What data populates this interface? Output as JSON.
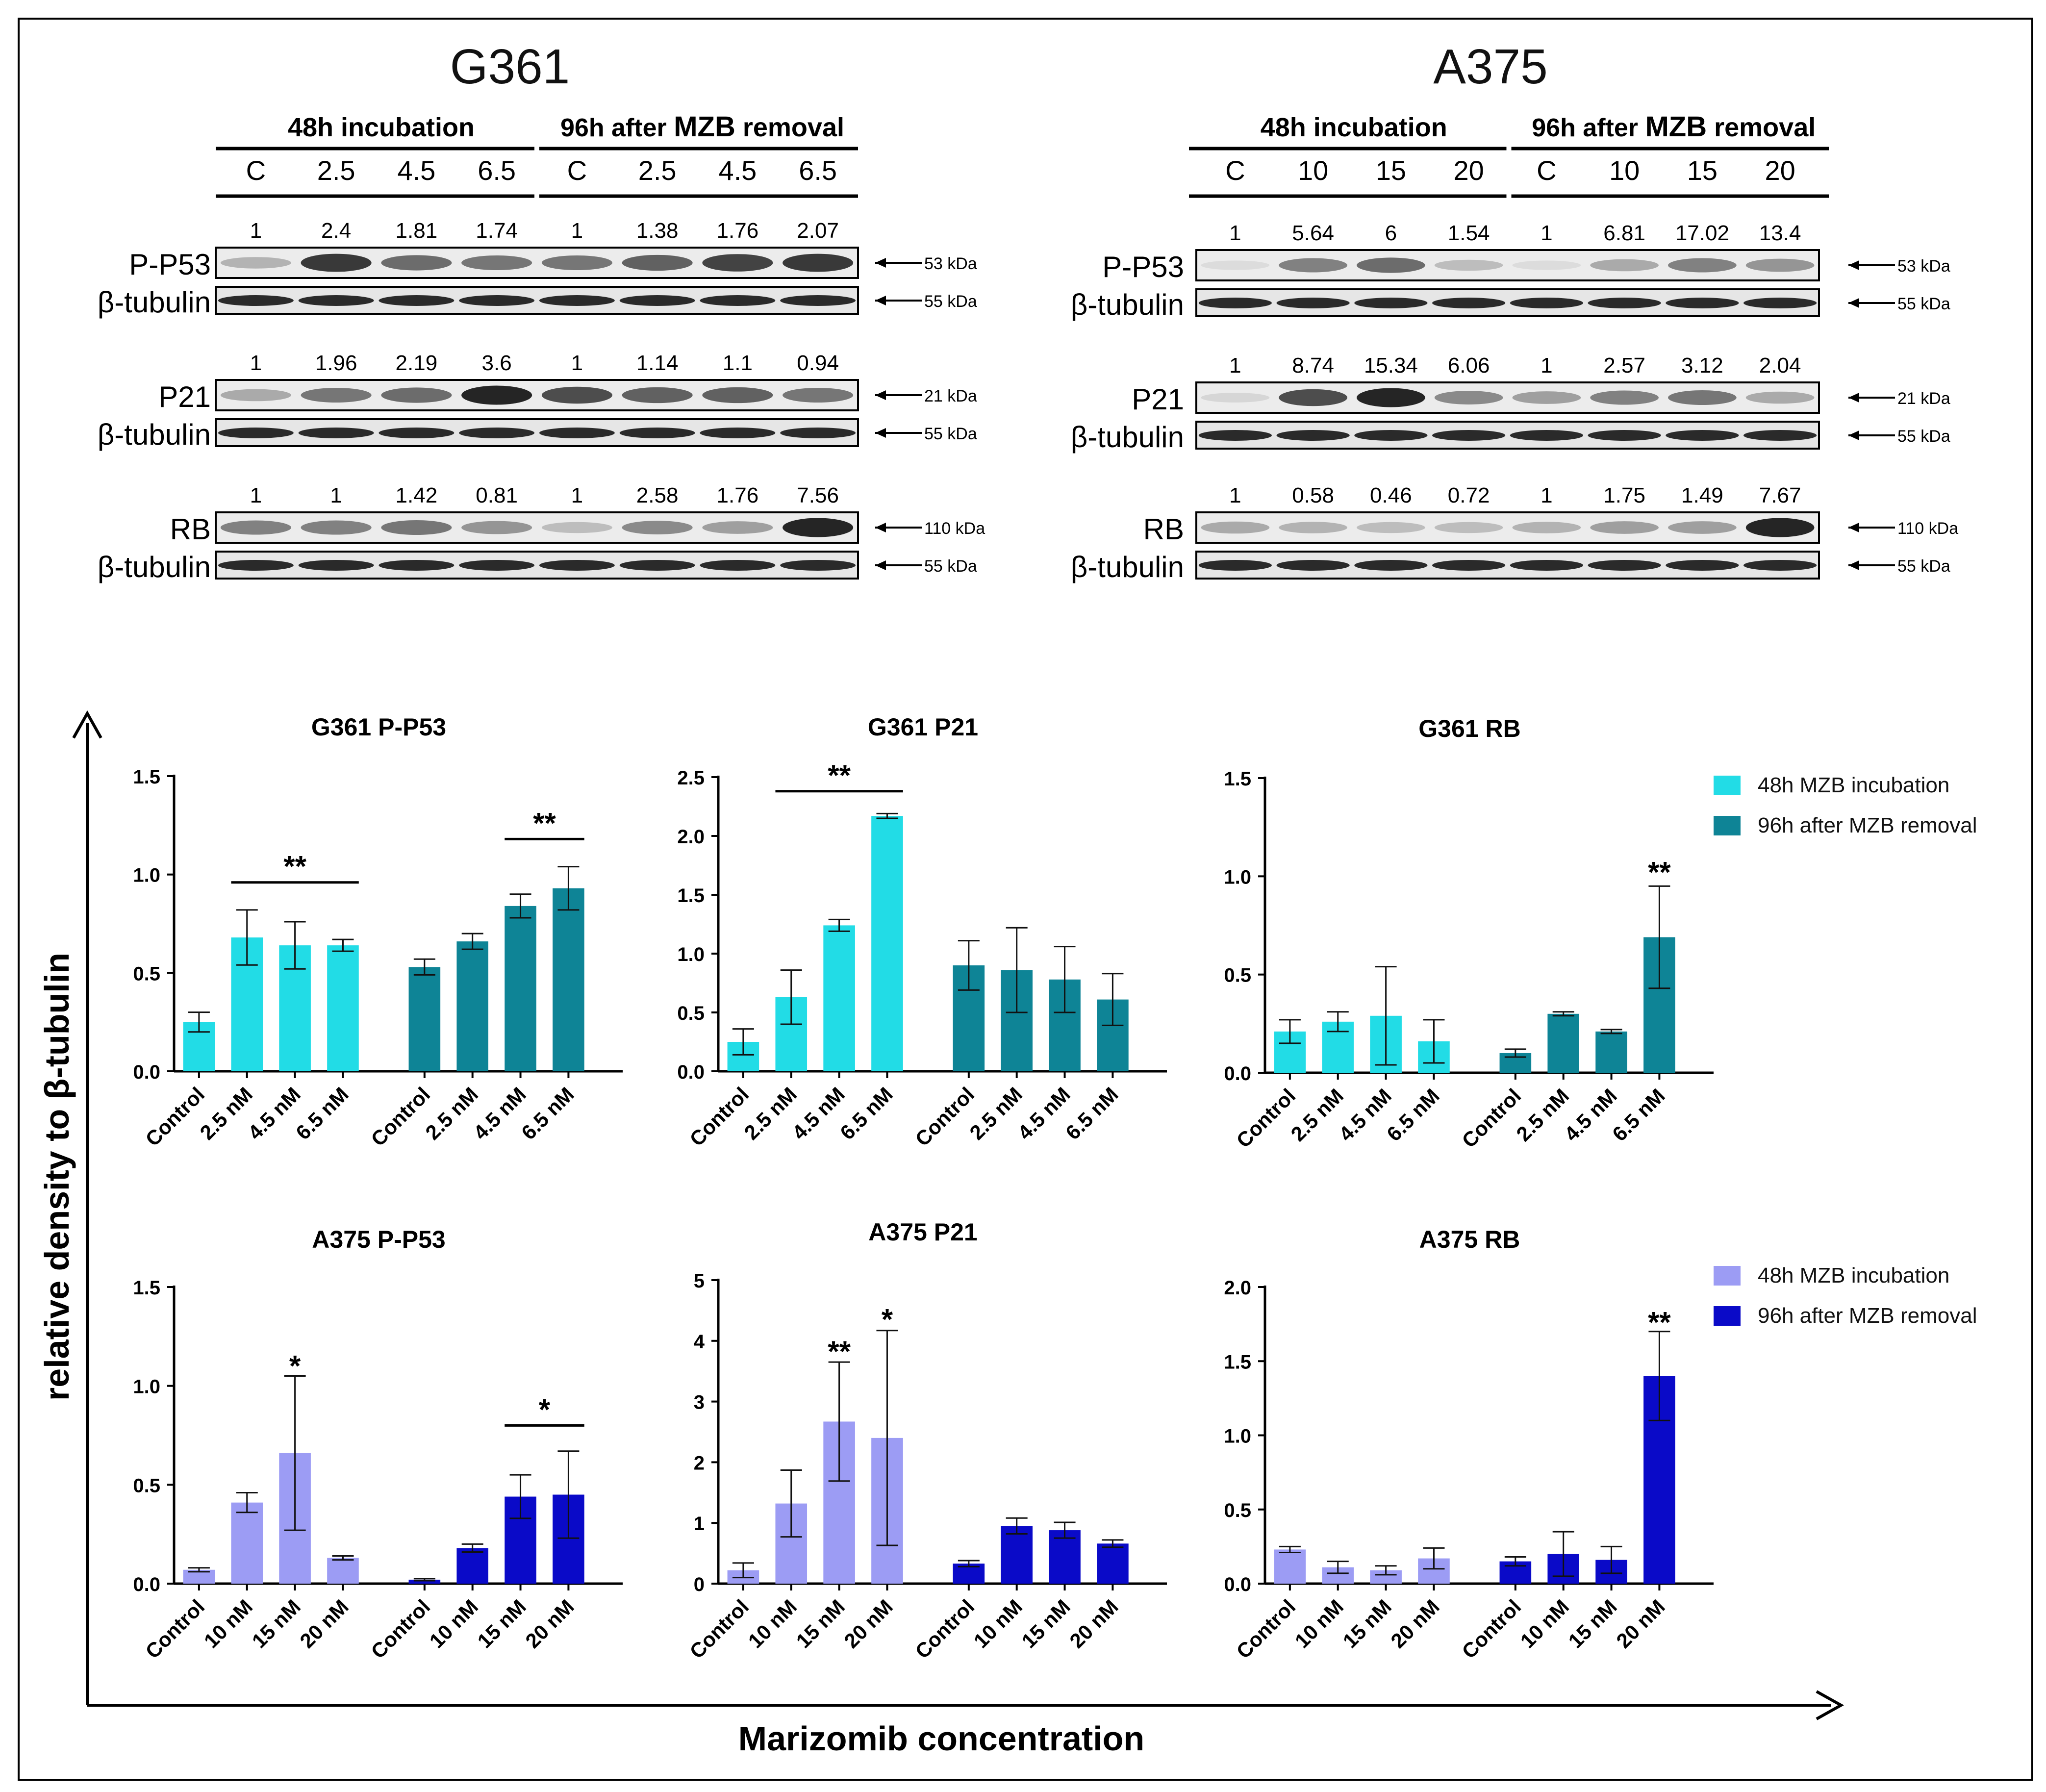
{
  "colors": {
    "cyan": "#22dce6",
    "teal": "#0e8496",
    "lavender": "#9c9cf4",
    "blue": "#0a0ac8",
    "line": "#000000"
  },
  "axes": {
    "ylabel": "relative density to β-tubulin",
    "xlabel": "Marizomib concentration"
  },
  "blots": [
    {
      "cell": "G361",
      "header": {
        "group1": "48h incubation",
        "group2_prefix": "96h after",
        "group2_bold": "MZB",
        "group2_suffix": "removal",
        "lanes": [
          "C",
          "2.5",
          "4.5",
          "6.5",
          "C",
          "2.5",
          "4.5",
          "6.5"
        ]
      },
      "rows": [
        {
          "protein": "P-P53",
          "values": [
            "1",
            "2.4",
            "1.81",
            "1.74",
            "1",
            "1.38",
            "1.76",
            "2.07"
          ],
          "intensity": [
            0.25,
            0.85,
            0.6,
            0.55,
            0.55,
            0.65,
            0.8,
            0.85
          ],
          "kda": "53 kDa",
          "tub": "β-tubulin",
          "tub_kda": "55 kDa"
        },
        {
          "protein": "P21",
          "values": [
            "1",
            "1.96",
            "2.19",
            "3.6",
            "1",
            "1.14",
            "1.1",
            "0.94"
          ],
          "intensity": [
            0.3,
            0.55,
            0.6,
            0.95,
            0.75,
            0.65,
            0.65,
            0.55
          ],
          "kda": "21 kDa",
          "tub": "β-tubulin",
          "tub_kda": "55 kDa"
        },
        {
          "protein": "RB",
          "values": [
            "1",
            "1",
            "1.42",
            "0.81",
            "1",
            "2.58",
            "1.76",
            "7.56"
          ],
          "intensity": [
            0.5,
            0.5,
            0.55,
            0.4,
            0.2,
            0.45,
            0.35,
            0.95
          ],
          "kda": "110 kDa",
          "tub": "β-tubulin",
          "tub_kda": "55 kDa"
        }
      ]
    },
    {
      "cell": "A375",
      "header": {
        "group1": "48h incubation",
        "group2_prefix": "96h after",
        "group2_bold": "MZB",
        "group2_suffix": "removal",
        "lanes": [
          "C",
          "10",
          "15",
          "20",
          "C",
          "10",
          "15",
          "20"
        ]
      },
      "rows": [
        {
          "protein": "P-P53",
          "values": [
            "1",
            "5.64",
            "6",
            "1.54",
            "1",
            "6.81",
            "17.02",
            "13.4"
          ],
          "intensity": [
            0.05,
            0.5,
            0.6,
            0.2,
            0.05,
            0.3,
            0.5,
            0.4
          ],
          "kda": "53 kDa",
          "tub": "β-tubulin",
          "tub_kda": "55 kDa"
        },
        {
          "protein": "P21",
          "values": [
            "1",
            "8.74",
            "15.34",
            "6.06",
            "1",
            "2.57",
            "3.12",
            "2.04"
          ],
          "intensity": [
            0.08,
            0.75,
            0.95,
            0.45,
            0.35,
            0.5,
            0.55,
            0.3
          ],
          "kda": "21 kDa",
          "tub": "β-tubulin",
          "tub_kda": "55 kDa"
        },
        {
          "protein": "RB",
          "values": [
            "1",
            "0.58",
            "0.46",
            "0.72",
            "1",
            "1.75",
            "1.49",
            "7.67"
          ],
          "intensity": [
            0.3,
            0.25,
            0.2,
            0.2,
            0.25,
            0.35,
            0.35,
            0.95
          ],
          "kda": "110 kDa",
          "tub": "β-tubulin",
          "tub_kda": "55 kDa"
        }
      ]
    }
  ],
  "legends": [
    {
      "entries": [
        "48h MZB incubation",
        "96h after MZB removal"
      ],
      "colors": [
        "#22dce6",
        "#0e8496"
      ]
    },
    {
      "entries": [
        "48h MZB incubation",
        "96h after MZB removal"
      ],
      "colors": [
        "#9c9cf4",
        "#0a0ac8"
      ]
    }
  ],
  "chart_data": [
    {
      "type": "bar",
      "title": "G361 P-P53",
      "ylim": [
        0,
        1.5
      ],
      "yticks": [
        "0.0",
        "0.5",
        "1.0",
        "1.5"
      ],
      "categories": [
        "Control",
        "2.5 nM",
        "4.5 nM",
        "6.5 nM"
      ],
      "series": [
        {
          "name": "48h MZB incubation",
          "values": [
            0.25,
            0.68,
            0.64,
            0.64
          ],
          "errors": [
            0.05,
            0.14,
            0.12,
            0.03
          ]
        },
        {
          "name": "96h after MZB removal",
          "values": [
            0.53,
            0.66,
            0.84,
            0.93
          ],
          "errors": [
            0.04,
            0.04,
            0.06,
            0.11
          ]
        }
      ],
      "annotations": [
        {
          "text": "**",
          "type": "bracket",
          "series": 0,
          "from": 1,
          "to": 3,
          "y": 0.96
        },
        {
          "text": "**",
          "type": "bracket",
          "series": 1,
          "from": 2,
          "to": 3,
          "y": 1.18
        }
      ]
    },
    {
      "type": "bar",
      "title": "G361 P21",
      "ylim": [
        0,
        2.5
      ],
      "yticks": [
        "0.0",
        "0.5",
        "1.0",
        "1.5",
        "2.0",
        "2.5"
      ],
      "categories": [
        "Control",
        "2.5 nM",
        "4.5 nM",
        "6.5 nM"
      ],
      "series": [
        {
          "name": "48h MZB incubation",
          "values": [
            0.25,
            0.63,
            1.24,
            2.17
          ],
          "errors": [
            0.11,
            0.23,
            0.05,
            0.02
          ]
        },
        {
          "name": "96h after MZB removal",
          "values": [
            0.9,
            0.86,
            0.78,
            0.61
          ],
          "errors": [
            0.21,
            0.36,
            0.28,
            0.22
          ]
        }
      ],
      "annotations": [
        {
          "text": "**",
          "type": "bracket",
          "series": 0,
          "from": 1,
          "to": 3,
          "y": 2.38
        }
      ]
    },
    {
      "type": "bar",
      "title": "G361 RB",
      "ylim": [
        0,
        1.5
      ],
      "yticks": [
        "0.0",
        "0.5",
        "1.0",
        "1.5"
      ],
      "categories": [
        "Control",
        "2.5 nM",
        "4.5 nM",
        "6.5 nM"
      ],
      "series": [
        {
          "name": "48h MZB incubation",
          "values": [
            0.21,
            0.26,
            0.29,
            0.16
          ],
          "errors": [
            0.06,
            0.05,
            0.25,
            0.11
          ]
        },
        {
          "name": "96h after MZB removal",
          "values": [
            0.1,
            0.3,
            0.21,
            0.69
          ],
          "errors": [
            0.02,
            0.01,
            0.01,
            0.26
          ]
        }
      ],
      "annotations": [
        {
          "text": "**",
          "type": "star",
          "series": 1,
          "index": 3,
          "y": 1.02
        }
      ]
    },
    {
      "type": "bar",
      "title": "A375 P-P53",
      "ylim": [
        0,
        1.5
      ],
      "yticks": [
        "0.0",
        "0.5",
        "1.0",
        "1.5"
      ],
      "categories": [
        "Control",
        "10 nM",
        "15 nM",
        "20 nM"
      ],
      "series": [
        {
          "name": "48h MZB incubation",
          "values": [
            0.07,
            0.41,
            0.66,
            0.13
          ],
          "errors": [
            0.01,
            0.05,
            0.39,
            0.01
          ]
        },
        {
          "name": "96h after MZB removal",
          "values": [
            0.02,
            0.18,
            0.44,
            0.45
          ],
          "errors": [
            0.005,
            0.02,
            0.11,
            0.22
          ]
        }
      ],
      "annotations": [
        {
          "text": "*",
          "type": "star",
          "series": 0,
          "index": 2,
          "y": 1.1
        },
        {
          "text": "*",
          "type": "bracket",
          "series": 1,
          "from": 2,
          "to": 3,
          "y": 0.8
        }
      ]
    },
    {
      "type": "bar",
      "title": "A375 P21",
      "ylim": [
        0,
        5
      ],
      "yticks": [
        "0",
        "1",
        "2",
        "3",
        "4",
        "5"
      ],
      "categories": [
        "Control",
        "10 nM",
        "15 nM",
        "20 nM"
      ],
      "series": [
        {
          "name": "48h MZB incubation",
          "values": [
            0.22,
            1.32,
            2.67,
            2.4
          ],
          "errors": [
            0.12,
            0.55,
            0.98,
            1.77
          ]
        },
        {
          "name": "96h after MZB removal",
          "values": [
            0.33,
            0.95,
            0.88,
            0.66
          ],
          "errors": [
            0.05,
            0.13,
            0.13,
            0.06
          ]
        }
      ],
      "annotations": [
        {
          "text": "**",
          "type": "star",
          "series": 0,
          "index": 2,
          "y": 3.82
        },
        {
          "text": "*",
          "type": "star",
          "series": 0,
          "index": 3,
          "y": 4.35
        }
      ]
    },
    {
      "type": "bar",
      "title": "A375 RB",
      "ylim": [
        0,
        2.0
      ],
      "yticks": [
        "0.0",
        "0.5",
        "1.0",
        "1.5",
        "2.0"
      ],
      "categories": [
        "Control",
        "10 nM",
        "15 nM",
        "20 nM"
      ],
      "series": [
        {
          "name": "48h MZB incubation",
          "values": [
            0.23,
            0.11,
            0.09,
            0.17
          ],
          "errors": [
            0.02,
            0.04,
            0.03,
            0.07
          ]
        },
        {
          "name": "96h after MZB removal",
          "values": [
            0.15,
            0.2,
            0.16,
            1.4
          ],
          "errors": [
            0.03,
            0.15,
            0.09,
            0.3
          ]
        }
      ],
      "annotations": [
        {
          "text": "**",
          "type": "star",
          "series": 1,
          "index": 3,
          "y": 1.76
        }
      ]
    }
  ]
}
